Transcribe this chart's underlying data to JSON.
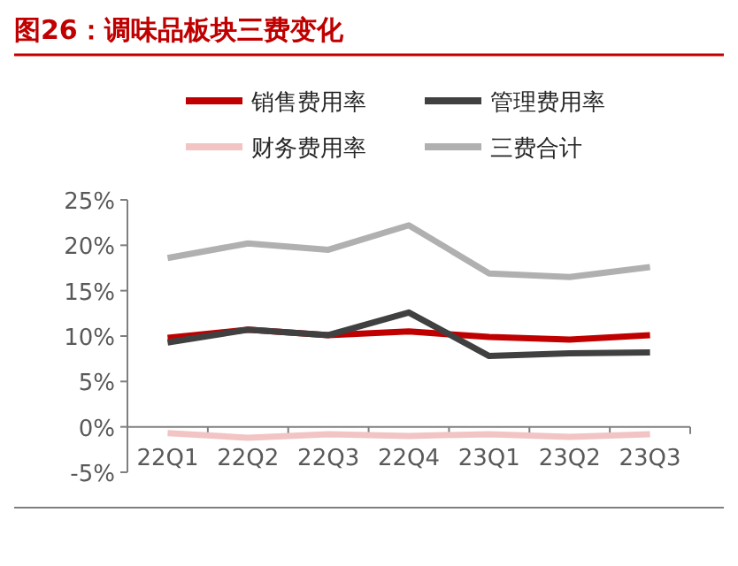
{
  "chart_data": {
    "type": "line",
    "title": "图26：调味品板块三费变化",
    "categories": [
      "22Q1",
      "22Q2",
      "22Q3",
      "22Q4",
      "23Q1",
      "23Q2",
      "23Q3"
    ],
    "series": [
      {
        "name": "销售费用率",
        "color": "#c00000",
        "values": [
          9.8,
          10.7,
          10.1,
          10.5,
          9.9,
          9.6,
          10.1
        ]
      },
      {
        "name": "管理费用率",
        "color": "#404040",
        "values": [
          9.3,
          10.7,
          10.1,
          12.6,
          7.8,
          8.1,
          8.2
        ]
      },
      {
        "name": "财务费用率",
        "color": "#f2c4c4",
        "values": [
          -0.7,
          -1.2,
          -0.8,
          -1.0,
          -0.8,
          -1.1,
          -0.8
        ]
      },
      {
        "name": "三费合计",
        "color": "#b0b0b0",
        "values": [
          18.6,
          20.2,
          19.5,
          22.2,
          16.9,
          16.5,
          17.6
        ]
      }
    ],
    "ylim": [
      -5,
      25
    ],
    "yticks": [
      {
        "value": -5,
        "label": "-5%"
      },
      {
        "value": 0,
        "label": "0%"
      },
      {
        "value": 5,
        "label": "5%"
      },
      {
        "value": 10,
        "label": "10%"
      },
      {
        "value": 15,
        "label": "15%"
      },
      {
        "value": 20,
        "label": "20%"
      },
      {
        "value": 25,
        "label": "25%"
      }
    ],
    "legend": "top",
    "grid": false,
    "marker": "none",
    "line_style": "solid"
  }
}
